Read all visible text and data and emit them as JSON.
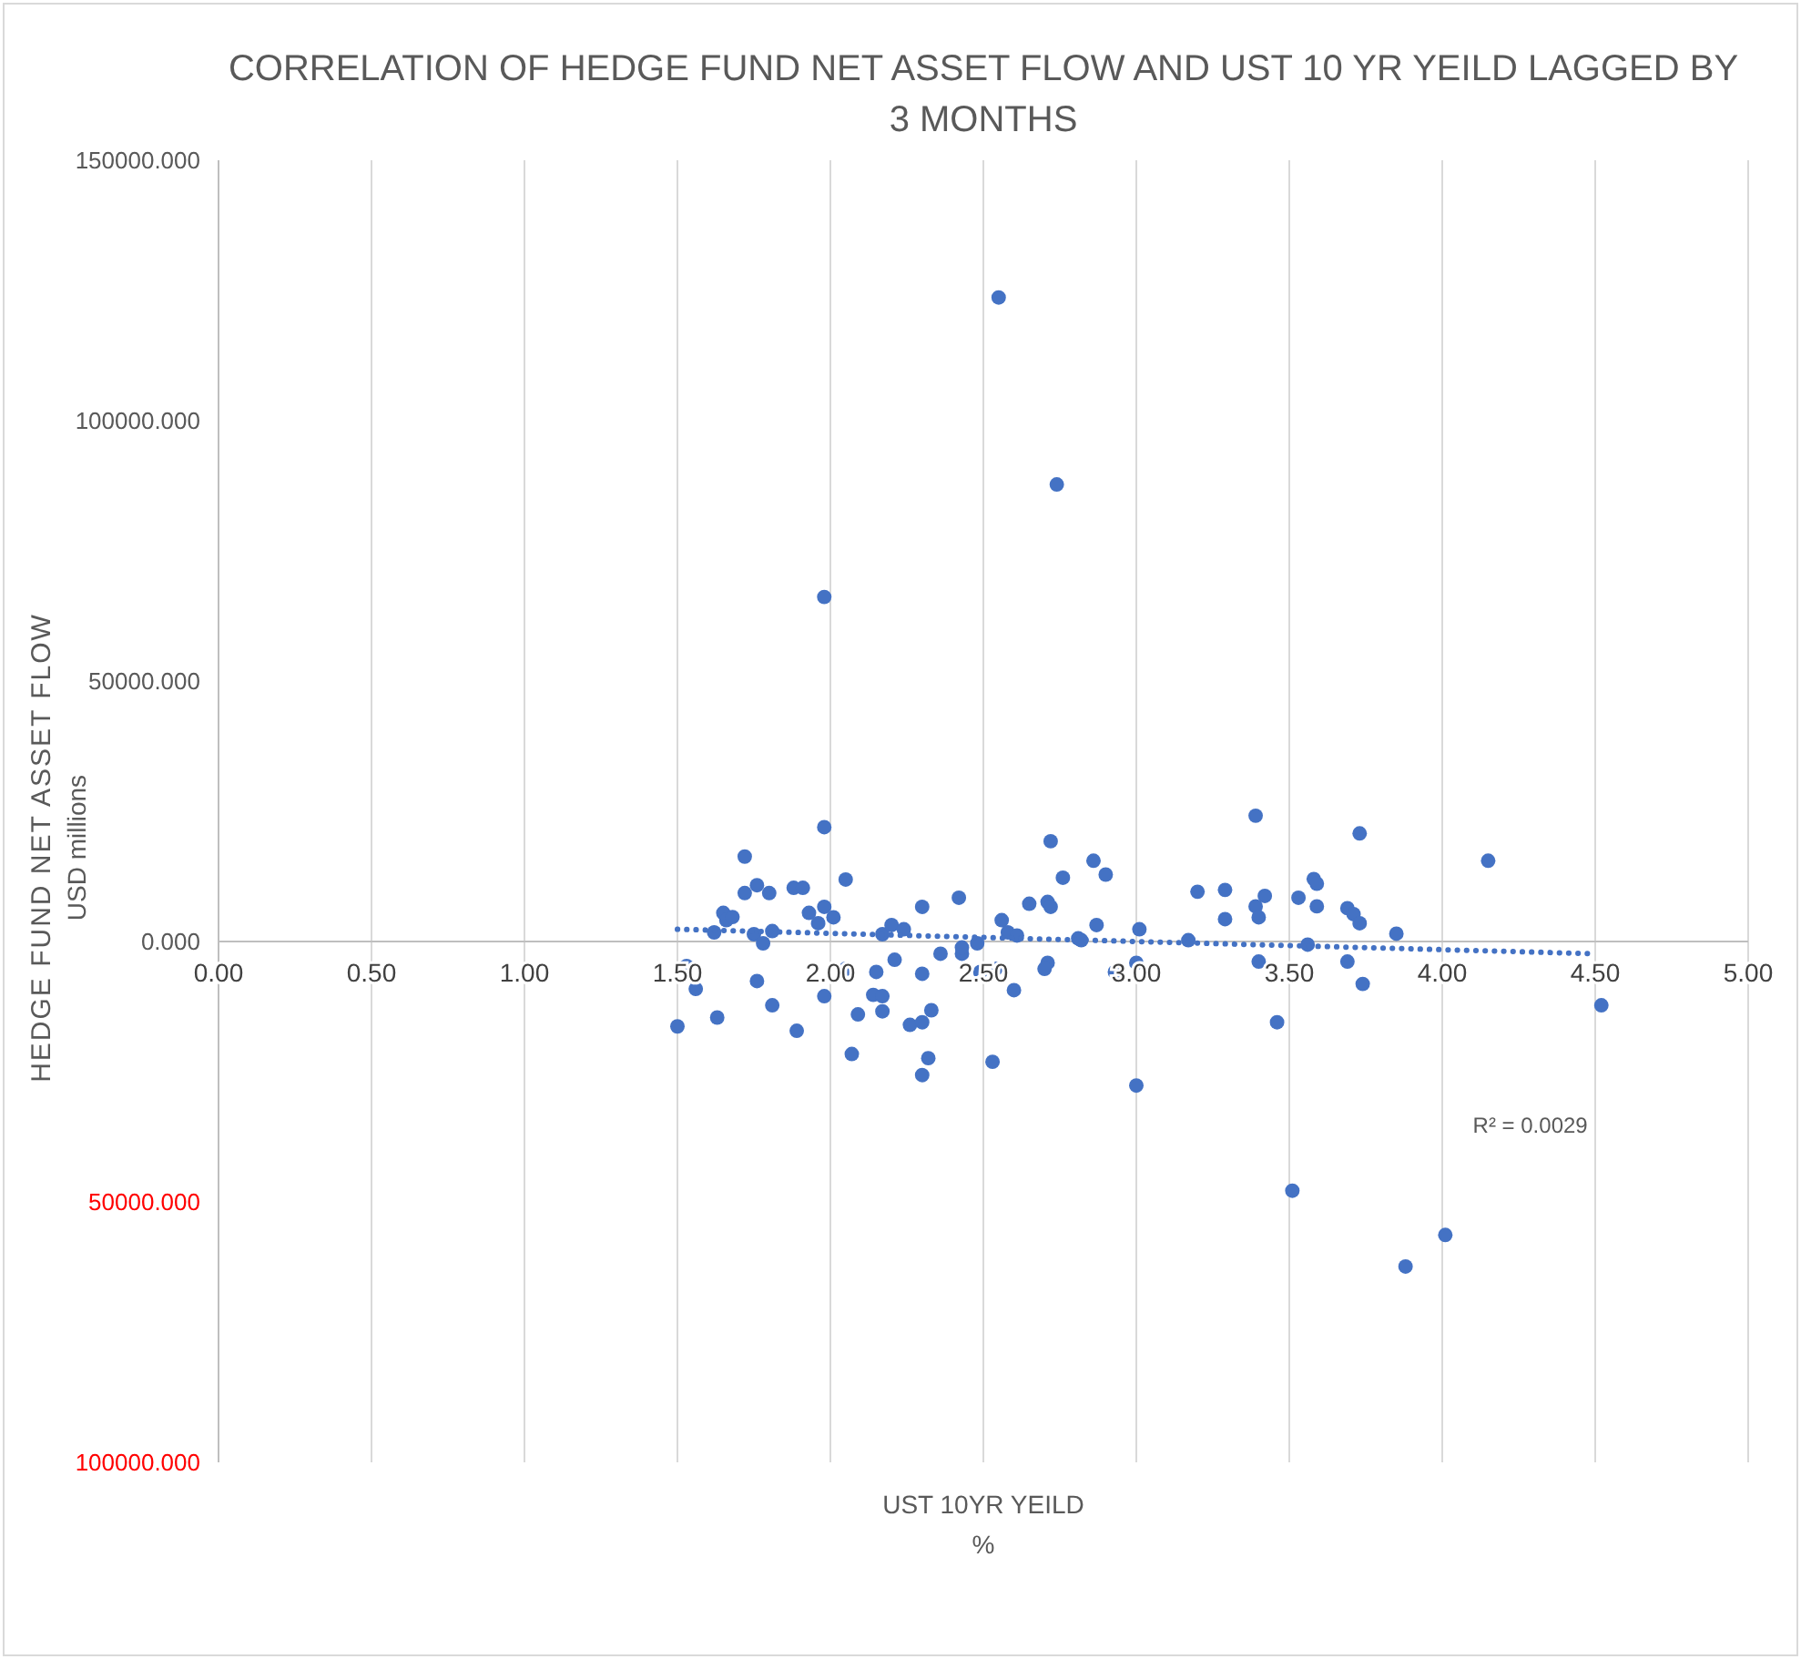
{
  "chart_data": {
    "type": "scatter",
    "title": "CORRELATION  OF HEDGE FUND NET ASSET FLOW AND UST 10 YR YEILD LAGGED BY\n3 MONTHS",
    "xlabel": "UST 10YR YEILD\n%",
    "ylabel": "HEDGE FUND NET ASSET FLOW\nUSD millions",
    "xlim": [
      0,
      5
    ],
    "ylim": [
      -100000,
      150000
    ],
    "xticks": [
      {
        "value": 0,
        "label": "0.00"
      },
      {
        "value": 0.5,
        "label": "0.50"
      },
      {
        "value": 1,
        "label": "1.00"
      },
      {
        "value": 1.5,
        "label": "1.50"
      },
      {
        "value": 2,
        "label": "2.00"
      },
      {
        "value": 2.5,
        "label": "2.50"
      },
      {
        "value": 3,
        "label": "3.00"
      },
      {
        "value": 3.5,
        "label": "3.50"
      },
      {
        "value": 4,
        "label": "4.00"
      },
      {
        "value": 4.5,
        "label": "4.50"
      },
      {
        "value": 5,
        "label": "5.00"
      }
    ],
    "yticks": [
      {
        "value": -100000,
        "label": "100000.000"
      },
      {
        "value": -50000,
        "label": "50000.000"
      },
      {
        "value": 0,
        "label": "0.000"
      },
      {
        "value": 50000,
        "label": "50000.000"
      },
      {
        "value": 100000,
        "label": "100000.000"
      },
      {
        "value": 150000,
        "label": "150000.000"
      }
    ],
    "grid": "x",
    "marker": "circle",
    "annotations": [
      "R² = 0.0029"
    ],
    "series": [
      {
        "color": "#4472c4",
        "x": [
          1.5,
          1.53,
          1.56,
          1.63,
          1.62,
          1.65,
          1.66,
          1.68,
          1.72,
          1.72,
          1.76,
          1.8,
          1.75,
          1.78,
          1.81,
          1.76,
          1.81,
          1.88,
          1.91,
          1.89,
          1.93,
          1.96,
          1.98,
          2.01,
          1.98,
          1.98,
          2.05,
          2.05,
          2.09,
          2.07,
          2.15,
          2.14,
          2.17,
          2.17,
          2.17,
          2.2,
          2.24,
          2.21,
          2.26,
          2.3,
          2.3,
          2.3,
          2.32,
          2.3,
          2.33,
          2.36,
          2.42,
          2.43,
          2.43,
          2.48,
          2.49,
          2.54,
          2.53,
          2.56,
          2.58,
          2.61,
          2.6,
          2.65,
          2.72,
          2.71,
          2.72,
          2.76,
          2.71,
          2.7,
          2.81,
          2.82,
          2.86,
          2.9,
          2.87,
          2.93,
          3.01,
          3.0,
          3.0,
          3.17,
          3.2,
          3.29,
          3.29,
          3.39,
          3.39,
          3.42,
          3.4,
          3.4,
          3.46,
          3.53,
          3.56,
          3.58,
          3.59,
          3.59,
          3.69,
          3.71,
          3.73,
          3.73,
          3.69,
          3.74,
          3.85,
          4.15,
          4.52,
          2.55,
          2.74,
          1.98,
          3.51,
          3.88,
          4.01
        ],
        "values": [
          -16300,
          -4700,
          -9100,
          -14600,
          1750,
          5500,
          4100,
          4700,
          16300,
          9300,
          10800,
          9300,
          1400,
          -350,
          2000,
          -7600,
          -12250,
          10300,
          10300,
          -17150,
          5500,
          3500,
          6650,
          4650,
          21950,
          -10500,
          11900,
          -5250,
          -14000,
          -21600,
          -5850,
          -10250,
          -10500,
          -13400,
          1400,
          3150,
          2350,
          -3500,
          -16000,
          -15500,
          -6200,
          6650,
          -22400,
          -25650,
          -13200,
          -2350,
          8400,
          -2350,
          -1150,
          -350,
          -5850,
          -5250,
          -23100,
          4100,
          1750,
          1150,
          -9350,
          7250,
          19250,
          7600,
          6650,
          12250,
          -4100,
          -5250,
          600,
          250,
          15500,
          12850,
          3150,
          -5850,
          2350,
          -4100,
          -27650,
          250,
          9550,
          9900,
          4300,
          24150,
          6750,
          8750,
          4650,
          -3850,
          -15500,
          8400,
          -600,
          12000,
          11100,
          6750,
          6400,
          5250,
          3500,
          20750,
          -3850,
          -8150,
          1500,
          15500,
          -12250,
          123650,
          87750,
          66150,
          -47850,
          -62400,
          -56350
        ]
      },
      {
        "type": "line",
        "color": "#4472c4",
        "line_style": "dotted",
        "marker": "none",
        "x": [
          1.5,
          4.5
        ],
        "values": [
          2350,
          -2350
        ]
      }
    ]
  }
}
